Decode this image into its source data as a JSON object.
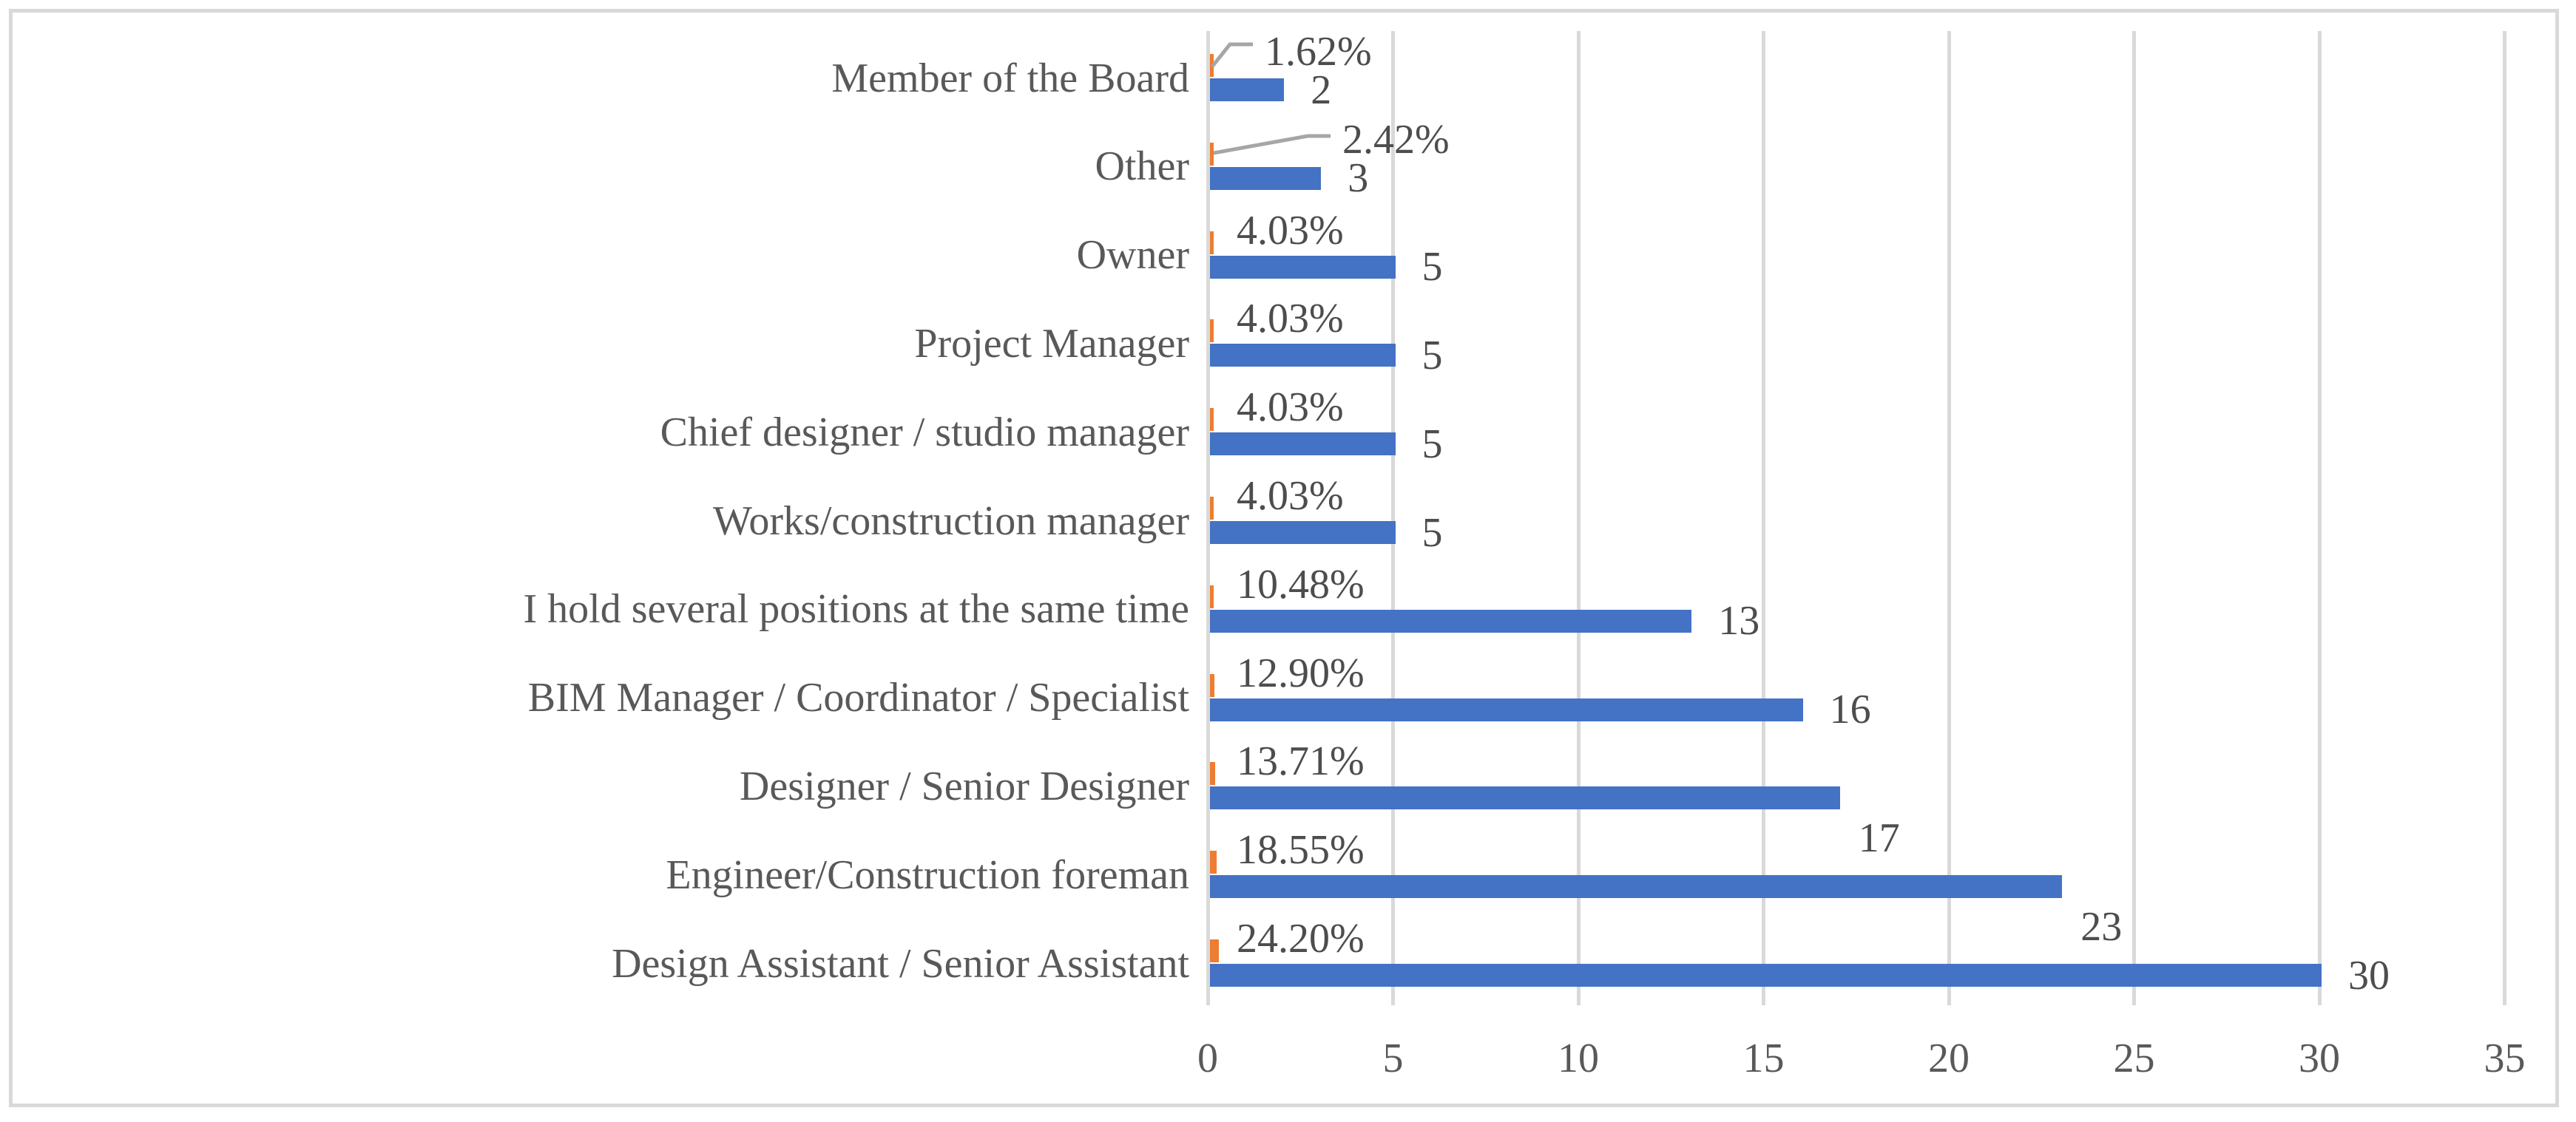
{
  "figure": {
    "background": "#FFFFFF",
    "frame_border_color": "#D9D9D9"
  },
  "chart_data": {
    "type": "bar",
    "orientation": "horizontal",
    "title": "",
    "xlabel": "",
    "ylabel": "",
    "legend": "none",
    "grid": "vertical",
    "categories": [
      "Member of the Board",
      "Other",
      "Owner",
      "Project Manager",
      "Chief designer / studio manager",
      "Works/construction manager",
      "I hold several positions at the same time",
      "BIM Manager / Coordinator / Specialist",
      "Designer / Senior Designer",
      "Engineer/Construction foreman",
      "Design Assistant / Senior Assistant"
    ],
    "series": [
      {
        "name": "share",
        "color": "#ED7D31",
        "values": [
          0.0162,
          0.0242,
          0.0403,
          0.0403,
          0.0403,
          0.0403,
          0.1048,
          0.129,
          0.1371,
          0.1855,
          0.242
        ],
        "labels": [
          "1.62%",
          "2.42%",
          "4.03%",
          "4.03%",
          "4.03%",
          "4.03%",
          "10.48%",
          "12.90%",
          "13.71%",
          "18.55%",
          "24.20%"
        ]
      },
      {
        "name": "count",
        "color": "#4472C4",
        "values": [
          2,
          3,
          5,
          5,
          5,
          5,
          13,
          16,
          17,
          23,
          30
        ],
        "labels": [
          "2",
          "3",
          "5",
          "5",
          "5",
          "5",
          "13",
          "16",
          "17",
          "23",
          "30"
        ]
      }
    ],
    "x_axis": {
      "range": [
        0,
        35
      ],
      "ticks": [
        0,
        5,
        10,
        15,
        20,
        25,
        30,
        35
      ],
      "tick_labels": [
        "0",
        "5",
        "10",
        "15",
        "20",
        "25",
        "30",
        "35"
      ]
    },
    "colors": {
      "gridline": "#D9D9D9",
      "leader_line": "#A6A6A6",
      "category_text": "#595959",
      "data_label_text": "#4D4D4D",
      "tick_text": "#595959"
    }
  }
}
